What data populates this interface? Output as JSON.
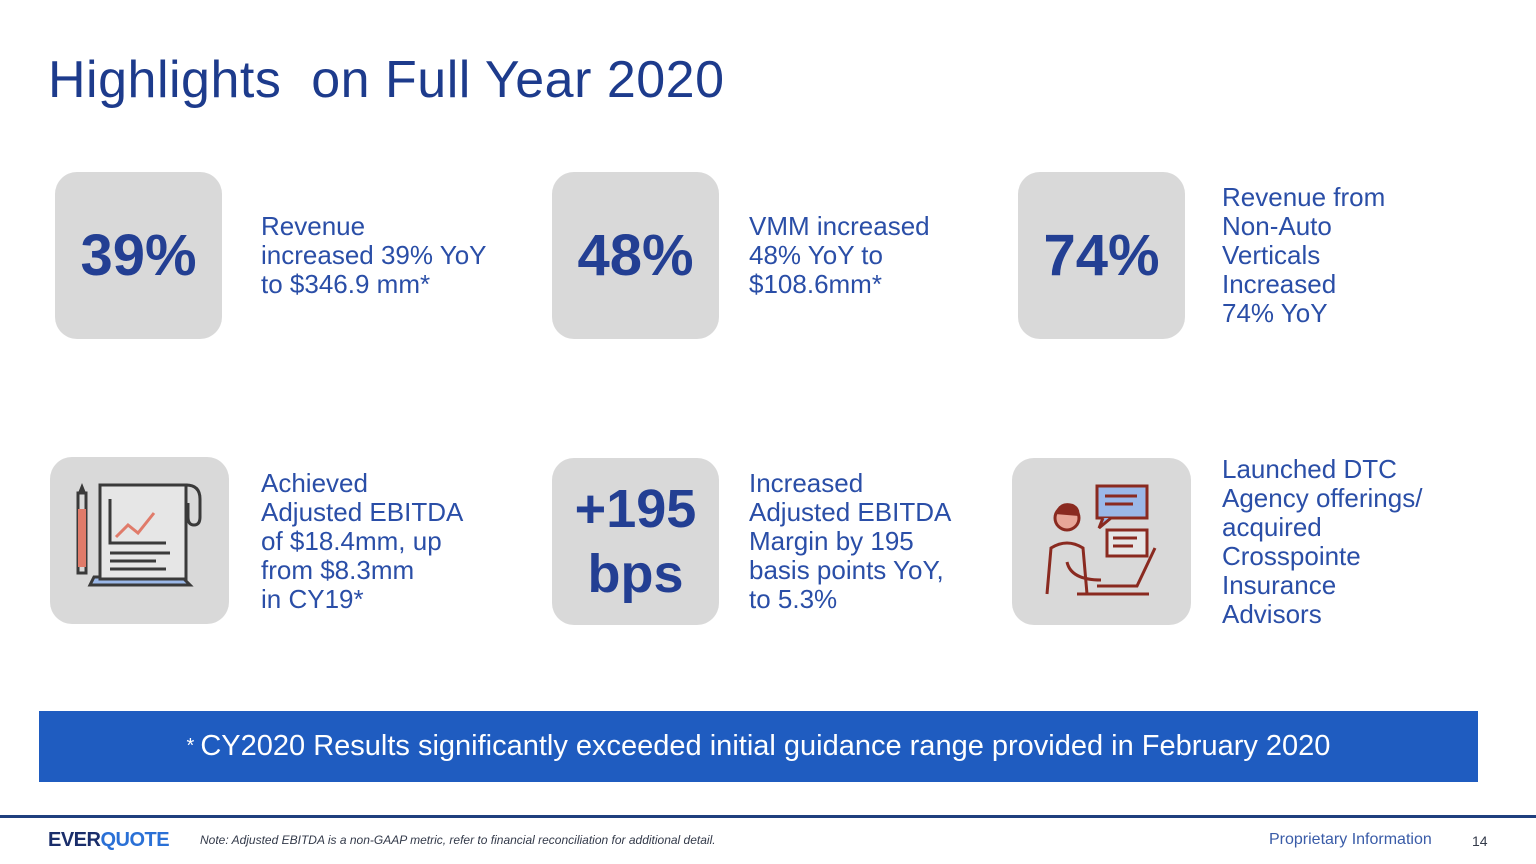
{
  "title": "Highlights  on Full Year 2020",
  "cards": [
    {
      "big": "39%",
      "desc": "Revenue\nincreased 39% YoY\nto $346.9 mm*"
    },
    {
      "big": "48%",
      "desc": "VMM increased\n48% YoY to\n$108.6mm*"
    },
    {
      "big": "74%",
      "desc": "Revenue from\nNon-Auto\nVerticals\nIncreased\n74% YoY"
    },
    {
      "icon": "report-chart-icon",
      "desc": "Achieved\nAdjusted EBITDA\nof $18.4mm, up\nfrom $8.3mm\nin CY19*"
    },
    {
      "big_line1": "+195",
      "big_line2": "bps",
      "desc": "Increased\nAdjusted EBITDA\nMargin by 195\nbasis points YoY,\nto 5.3%"
    },
    {
      "icon": "person-laptop-chat-icon",
      "desc": "Launched DTC\nAgency offerings/\nacquired\nCrosspointe\nInsurance\nAdvisors"
    }
  ],
  "banner": {
    "star": "*",
    "text": "CY2020 Results significantly exceeded initial guidance range provided in February 2020"
  },
  "footer": {
    "logo_part1": "EVER",
    "logo_part2": "QUOTE",
    "note": "Note: Adjusted EBITDA is a non-GAAP metric, refer to financial reconciliation for additional detail.",
    "proprietary": "Proprietary Information",
    "page_number": "14"
  },
  "colors": {
    "accent": "#1f5cc0",
    "navy": "#1d3b8c",
    "tile": "#d9d9d9",
    "icon_red": "#c0392b"
  }
}
